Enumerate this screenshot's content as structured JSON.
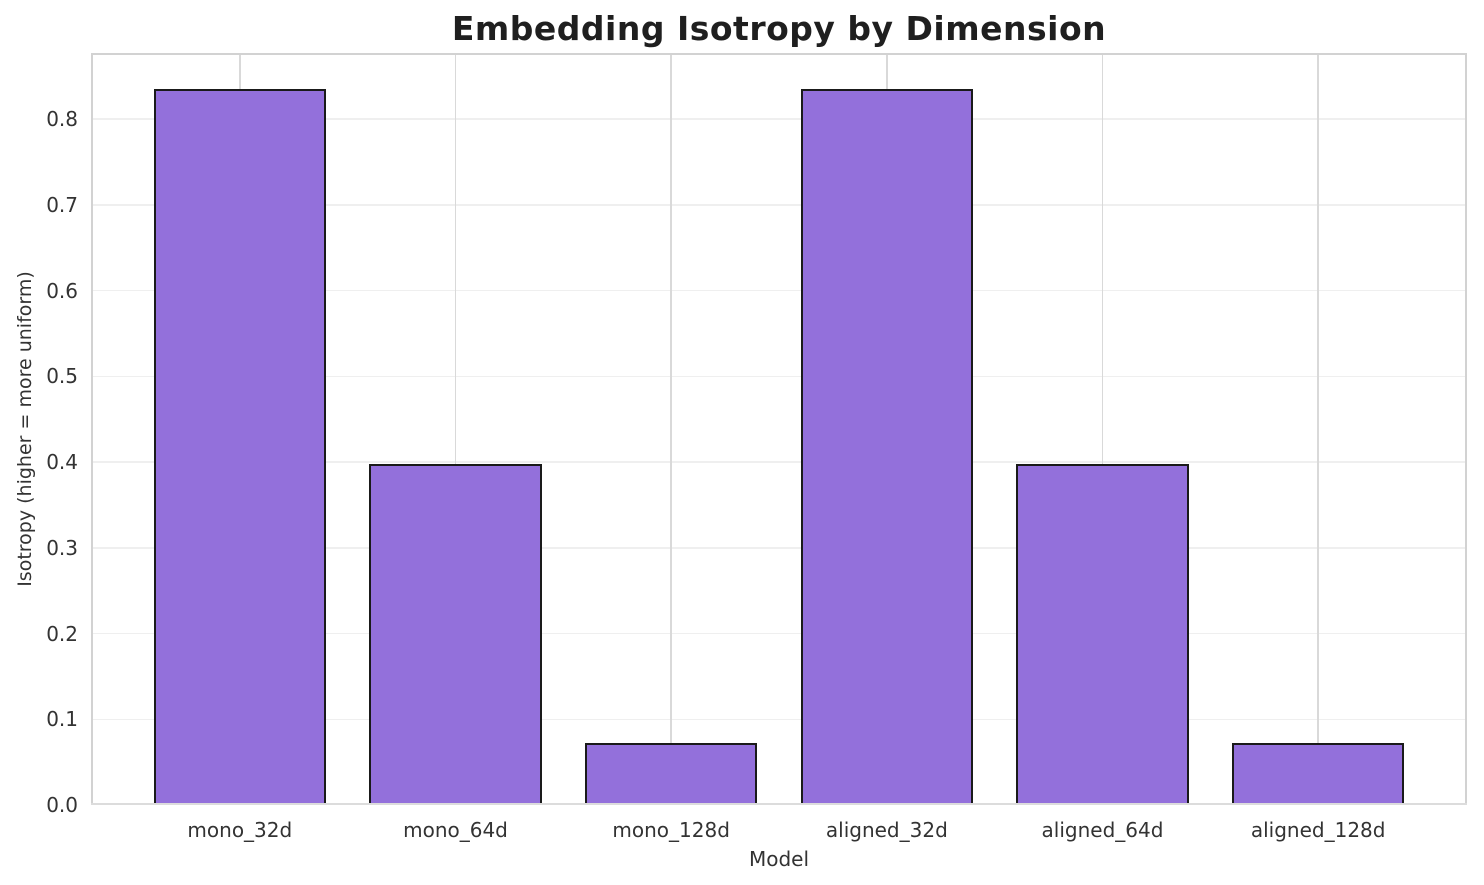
{
  "chart_data": {
    "type": "bar",
    "title": "Embedding Isotropy by Dimension",
    "xlabel": "Model",
    "ylabel": "Isotropy (higher = more uniform)",
    "categories": [
      "mono_32d",
      "mono_64d",
      "mono_128d",
      "aligned_32d",
      "aligned_64d",
      "aligned_128d"
    ],
    "values": [
      0.835,
      0.398,
      0.072,
      0.835,
      0.398,
      0.072
    ],
    "ytick_labels": [
      "0.0",
      "0.1",
      "0.2",
      "0.3",
      "0.4",
      "0.5",
      "0.6",
      "0.7",
      "0.8"
    ],
    "ytick_values": [
      0,
      0.1,
      0.2,
      0.3,
      0.4,
      0.5,
      0.6,
      0.7,
      0.8
    ],
    "ylim": [
      0,
      0.877
    ],
    "grid": true,
    "legend": null,
    "bar_color": "#9370DB",
    "bar_edge_color": "#1a1a1a",
    "hgrid_color": "#efefef",
    "vgrid_color": "#d9d9d9",
    "spine_color": "#d2d2d2",
    "title_color": "#1f1f1f",
    "tick_color": "#333333"
  }
}
